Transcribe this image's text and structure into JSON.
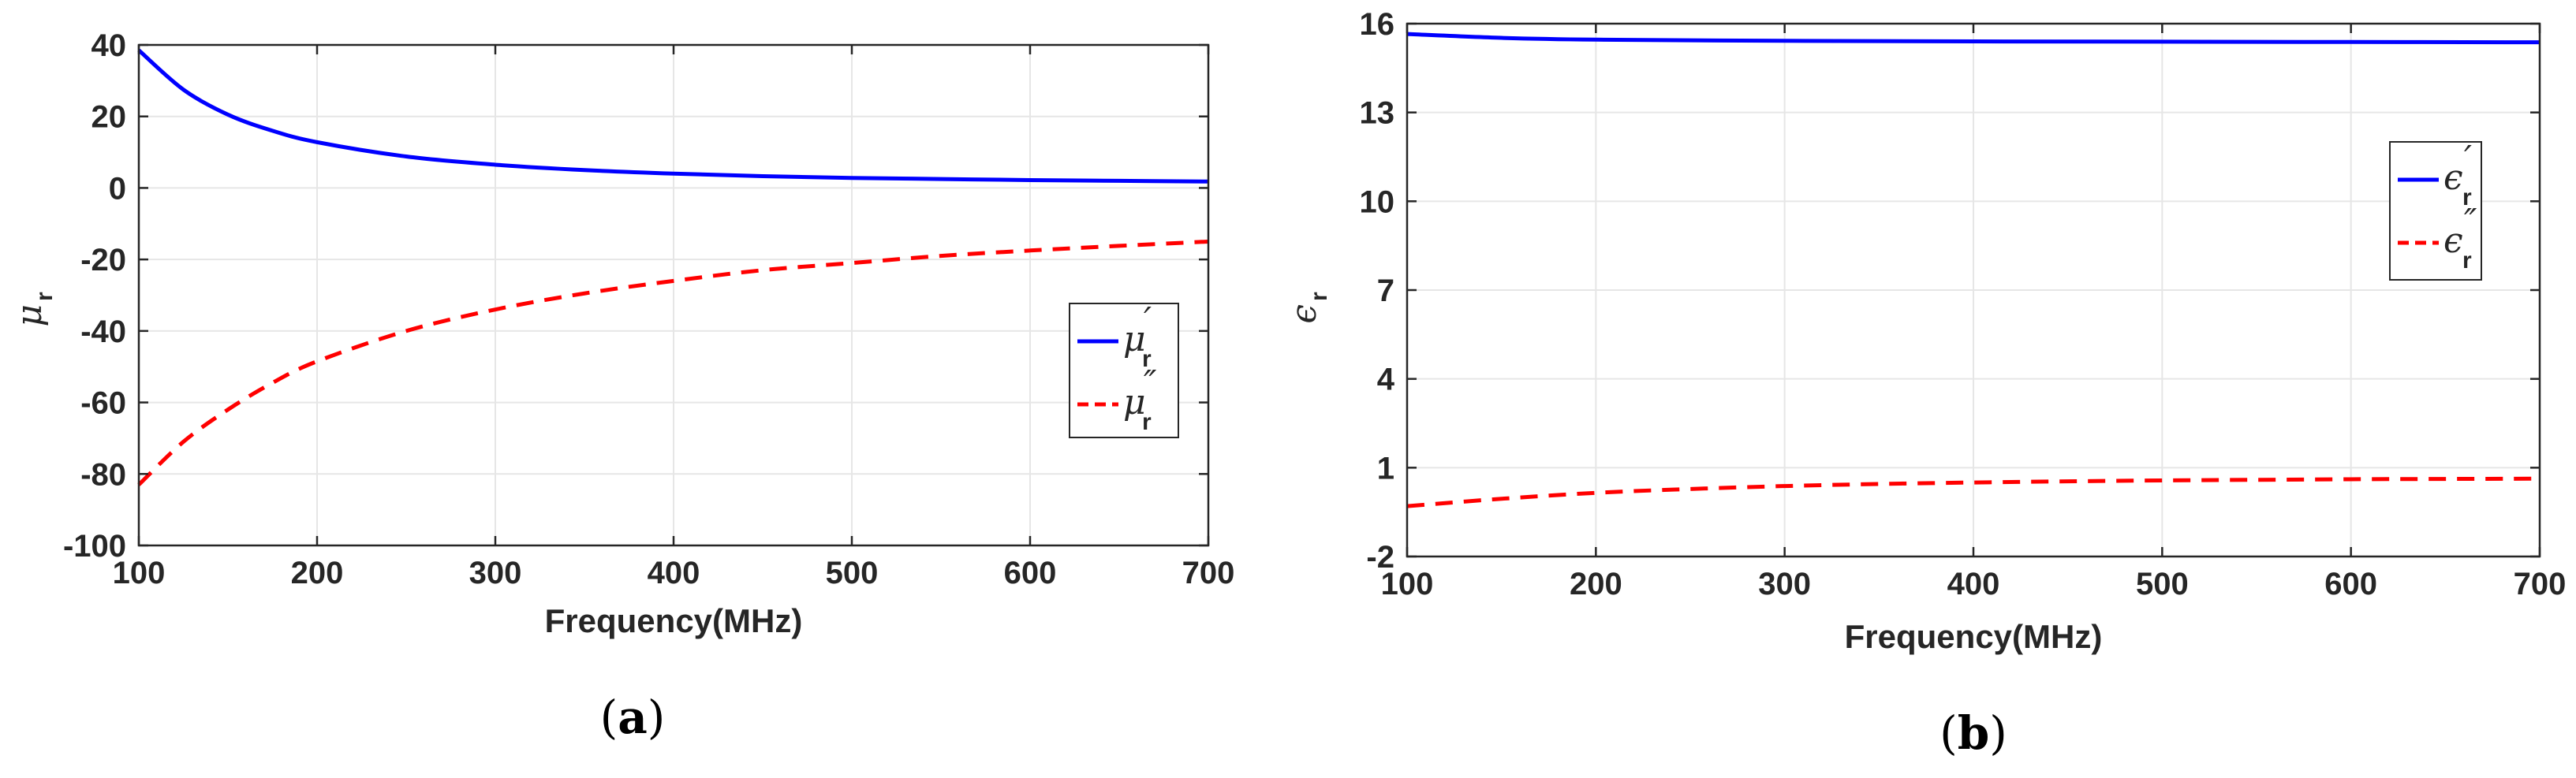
{
  "chart_data": [
    {
      "panel": "(a)",
      "panel_letter": "a",
      "type": "line",
      "xlabel": "Frequency(MHz)",
      "ylabel": "μ",
      "ylabel_sub": "r",
      "xlim": [
        100,
        700
      ],
      "ylim": [
        -100,
        40
      ],
      "xticks": [
        100,
        200,
        300,
        400,
        500,
        600,
        700
      ],
      "yticks": [
        -100,
        -80,
        -60,
        -40,
        -20,
        0,
        20,
        40
      ],
      "grid": true,
      "legend_position": "center-right",
      "series": [
        {
          "name": "μ′r",
          "symbol": "μ",
          "sub": "r",
          "prime": "′",
          "color": "#0000ff",
          "style": "solid",
          "x": [
            100,
            125,
            150,
            175,
            200,
            250,
            300,
            350,
            400,
            450,
            500,
            550,
            600,
            650,
            700
          ],
          "y": [
            38.5,
            27.5,
            20.5,
            16.0,
            12.8,
            8.8,
            6.5,
            5.0,
            4.0,
            3.3,
            2.8,
            2.5,
            2.2,
            2.0,
            1.8
          ]
        },
        {
          "name": "μ″r",
          "symbol": "μ",
          "sub": "r",
          "prime": "″",
          "color": "#ff0000",
          "style": "dashed",
          "x": [
            100,
            125,
            150,
            175,
            200,
            250,
            300,
            350,
            400,
            450,
            500,
            550,
            600,
            650,
            700
          ],
          "y": [
            -83,
            -71,
            -62,
            -54.5,
            -48.5,
            -40,
            -34,
            -29.5,
            -26,
            -23,
            -21,
            -19,
            -17.5,
            -16.2,
            -15
          ]
        }
      ]
    },
    {
      "panel": "(b)",
      "panel_letter": "b",
      "type": "line",
      "xlabel": "Frequency(MHz)",
      "ylabel": "ϵ",
      "ylabel_sub": "r",
      "xlim": [
        100,
        700
      ],
      "ylim": [
        -2,
        16
      ],
      "xticks": [
        100,
        200,
        300,
        400,
        500,
        600,
        700
      ],
      "yticks": [
        -2,
        1,
        4,
        7,
        10,
        13,
        16
      ],
      "grid": true,
      "legend_position": "center-right",
      "series": [
        {
          "name": "ϵ′r",
          "symbol": "ϵ",
          "sub": "r",
          "prime": "′",
          "color": "#0000ff",
          "style": "solid",
          "x": [
            100,
            150,
            200,
            300,
            400,
            500,
            600,
            700
          ],
          "y": [
            15.65,
            15.52,
            15.46,
            15.42,
            15.4,
            15.39,
            15.38,
            15.37
          ]
        },
        {
          "name": "ϵ″r",
          "symbol": "ϵ",
          "sub": "r",
          "prime": "″",
          "color": "#ff0000",
          "style": "dashed",
          "x": [
            100,
            150,
            200,
            250,
            300,
            350,
            400,
            450,
            500,
            550,
            600,
            650,
            700
          ],
          "y": [
            -0.3,
            -0.05,
            0.15,
            0.28,
            0.38,
            0.45,
            0.5,
            0.54,
            0.57,
            0.59,
            0.61,
            0.62,
            0.63
          ]
        }
      ]
    }
  ]
}
